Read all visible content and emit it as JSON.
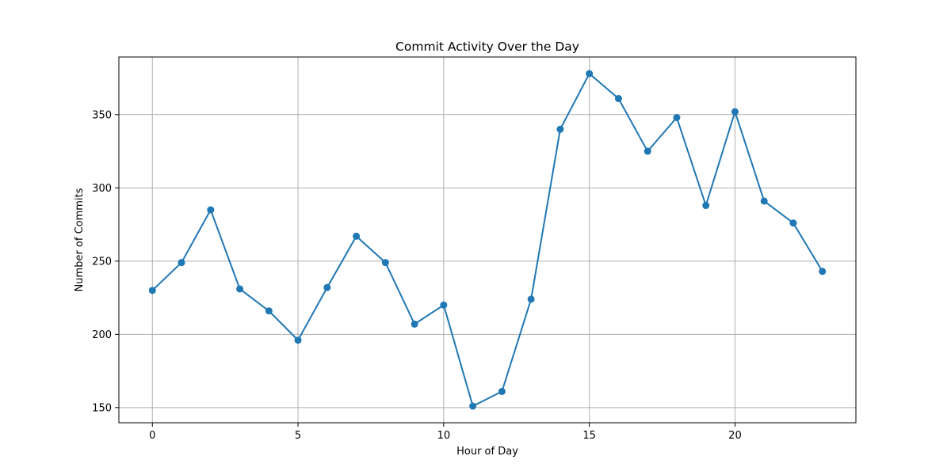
{
  "chart_data": {
    "type": "line",
    "title": "Commit Activity Over the Day",
    "xlabel": "Hour of Day",
    "ylabel": "Number of Commits",
    "x": [
      0,
      1,
      2,
      3,
      4,
      5,
      6,
      7,
      8,
      9,
      10,
      11,
      12,
      13,
      14,
      15,
      16,
      17,
      18,
      19,
      20,
      21,
      22,
      23
    ],
    "series": [
      {
        "values": [
          230,
          249,
          285,
          231,
          216,
          196,
          232,
          267,
          249,
          207,
          220,
          151,
          161,
          224,
          340,
          378,
          361,
          325,
          348,
          288,
          352,
          291,
          276,
          243
        ]
      }
    ],
    "xticks": [
      0,
      5,
      10,
      15,
      20
    ],
    "yticks": [
      150,
      200,
      250,
      300,
      350
    ],
    "xlim": [
      -1.15,
      24.15
    ],
    "ylim": [
      139.65,
      389.35
    ],
    "grid": true,
    "line_color": "#1f77b4",
    "marker": "circle"
  }
}
